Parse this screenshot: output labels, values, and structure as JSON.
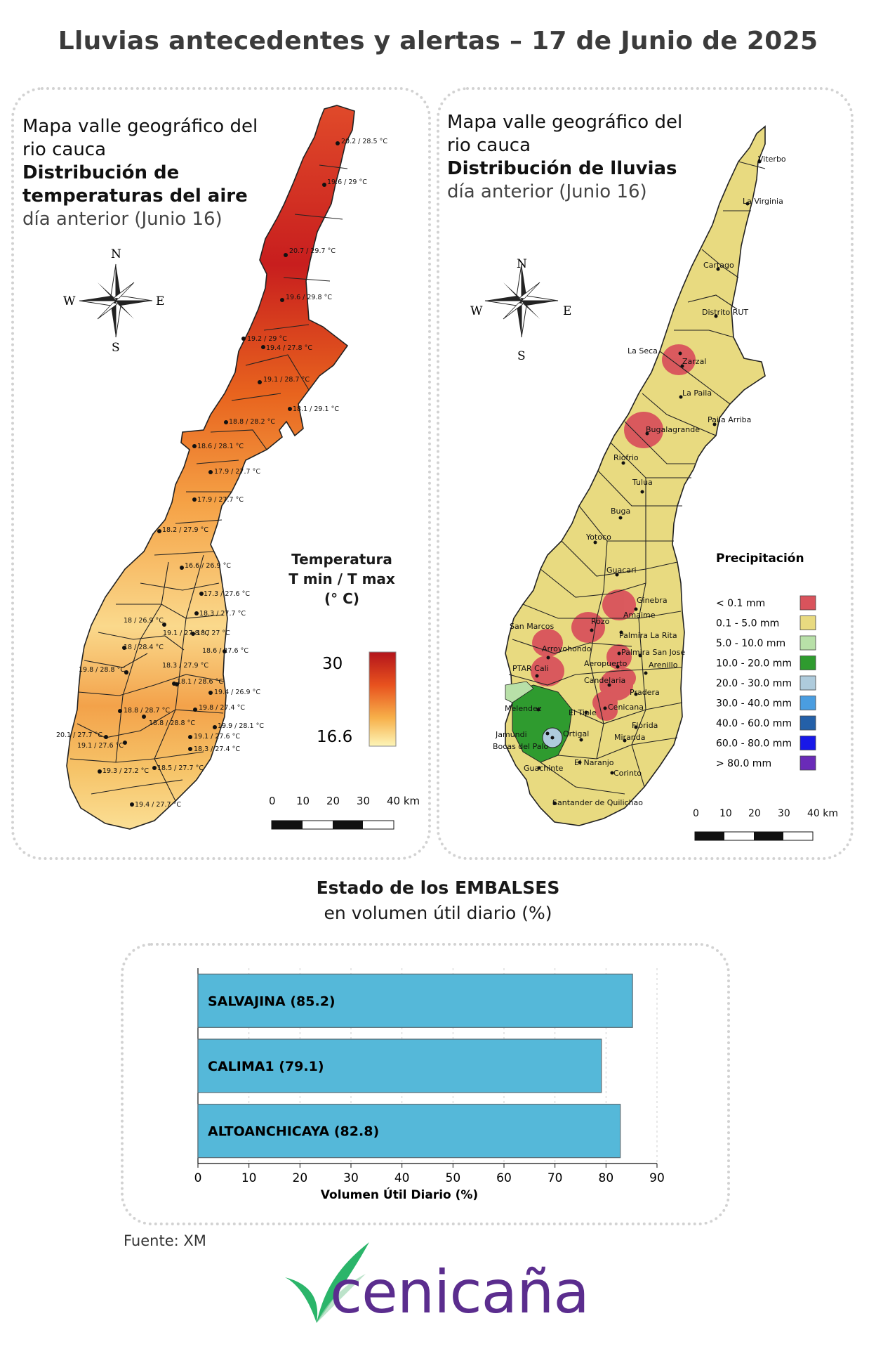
{
  "main_title": "Lluvias antecedentes y alertas – 17 de Junio de 2025",
  "temp_map": {
    "title_lines": [
      "Mapa valle geográfico del",
      "rio cauca"
    ],
    "title_bold_lines": [
      "Distribución de",
      "temperaturas del aire"
    ],
    "subtitle": "día anterior (Junio 16)",
    "compass": {
      "n": "N",
      "s": "S",
      "e": "E",
      "w": "W"
    },
    "legend_title_lines": [
      "Temperatura",
      "T min / T max",
      "(° C)"
    ],
    "legend_max": "30",
    "legend_min": "16.6",
    "scale_labels": [
      "0",
      "10",
      "20",
      "30",
      "40 km"
    ],
    "station_labels": [
      "20.2 / 28.5 °C",
      "19.6 / 29 °C",
      "20.7 / 29.7 °C",
      "19.6 / 29.8 °C",
      "19.2 / 29 °C",
      "19.4 / 27.8 °C",
      "19.1 / 28.7 °C",
      "18.1 / 29.1 °C",
      "18.8 / 28.2 °C",
      "18.6 / 28.1 °C",
      "17.9 / 27.7 °C",
      "17.9 / 27.7 °C",
      "18.2 / 27.9 °C",
      "16.6 / 26.9 °C",
      "17.3 / 27.6 °C",
      "18.3 / 27.7 °C",
      "18 / 26.9 °C",
      "19.1 / 27.8 °C",
      "18 / 27 °C",
      "18 / 28.4 °C",
      "18.6 / 27.6 °C",
      "19.8 / 28.8 °C",
      "18.3 / 27.9 °C",
      "18.1 / 28.6 °C",
      "19.4 / 26.9 °C",
      "18.8 / 28.7 °C",
      "19.8 / 27.4 °C",
      "18.8 / 28.8 °C",
      "19.9 / 28.1 °C",
      "20.1 / 27.7 °C",
      "19.1 / 27.6 °C",
      "19.1 / 27.6 °C",
      "18.3 / 27.4 °C",
      "19.3 / 27.2 °C",
      "18.5 / 27.7 °C",
      "19.4 / 27.7 °C"
    ]
  },
  "rain_map": {
    "title_lines": [
      "Mapa valle geográfico del",
      "rio cauca"
    ],
    "title_bold_lines": [
      "Distribución de lluvias"
    ],
    "subtitle": "día anterior (Junio 16)",
    "compass": {
      "n": "N",
      "s": "S",
      "e": "E",
      "w": "W"
    },
    "legend_title": "Precipitación",
    "legend_items": [
      {
        "label": "< 0.1 mm",
        "color": "#d9535c"
      },
      {
        "label": "0.1 - 5.0 mm",
        "color": "#e8da80"
      },
      {
        "label": "5.0 - 10.0 mm",
        "color": "#b8e0a8"
      },
      {
        "label": "10.0 - 20.0 mm",
        "color": "#2f9b2f"
      },
      {
        "label": "20.0 - 30.0 mm",
        "color": "#aecbdc"
      },
      {
        "label": "30.0 - 40.0 mm",
        "color": "#4a9de0"
      },
      {
        "label": "40.0 - 60.0 mm",
        "color": "#2460a8"
      },
      {
        "label": "60.0 - 80.0 mm",
        "color": "#1818e8"
      },
      {
        "label": "> 80.0 mm",
        "color": "#6a2bb8"
      }
    ],
    "scale_labels": [
      "0",
      "10",
      "20",
      "30",
      "40 km"
    ],
    "places": [
      "Viterbo",
      "La Virginia",
      "Cartago",
      "Distrito RUT",
      "La Seca",
      "Zarzal",
      "La Paila",
      "Paila Arriba",
      "Bugalagrande",
      "Riofrio",
      "Tulua",
      "Buga",
      "Yotoco",
      "Guacari",
      "Ginebra",
      "Amaime",
      "San Marcos",
      "Rozo",
      "Palmira La Rita",
      "Arroyohondo",
      "Palmira San Jose",
      "PTAR Cali",
      "Aeropuerto",
      "Arenillo",
      "Candelaria",
      "Pradera",
      "Melendez",
      "El Tiple",
      "Cenicana",
      "Florida",
      "Jamundi",
      "Bocas del Palo",
      "Ortigal",
      "Miranda",
      "El Naranjo",
      "Guachinte",
      "Corinto",
      "Santander de Quilichao"
    ]
  },
  "reservoirs": {
    "title": "Estado de los EMBALSES",
    "subtitle": "en volumen útil diario (%)",
    "chart_data": {
      "type": "bar",
      "orientation": "horizontal",
      "categories": [
        "SALVAJINA",
        "CALIMA1",
        "ALTOANCHICAYA"
      ],
      "values": [
        85.2,
        79.1,
        82.8
      ],
      "bar_labels": [
        "SALVAJINA (85.2)",
        "CALIMA1 (79.1)",
        "ALTOANCHICAYA (82.8)"
      ],
      "xlabel": "Volumen Útil Diario (%)",
      "xlim": [
        0,
        90
      ],
      "xticks": [
        "0",
        "10",
        "20",
        "30",
        "40",
        "50",
        "60",
        "70",
        "80",
        "90"
      ],
      "bar_color": "#55b8d9",
      "grid": "vertical dashed"
    }
  },
  "source": "Fuente: XM",
  "logo": {
    "text": "cenicaña",
    "color": "#5b2d8e",
    "leaf_color": "#2bb56a"
  }
}
